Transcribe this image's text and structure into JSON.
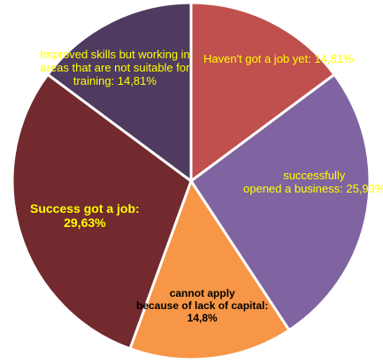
{
  "chart_data": {
    "type": "pie",
    "title": "",
    "slices": [
      {
        "label": "Haven't got a job yet",
        "value": 14.81,
        "display": "Haven't got a job yet: 14,81%",
        "color": "#c0504d",
        "label_color": "#ffff00",
        "bold": false
      },
      {
        "label": "successfully opened a business",
        "value": 25.93,
        "display": "successfully\nopened a business: 25,93%",
        "color": "#8064a2",
        "label_color": "#ffff00",
        "bold": false
      },
      {
        "label": "cannot apply because of lack of capital",
        "value": 14.8,
        "display": "cannot apply\nbecause of lack of capital:\n14,8%",
        "color": "#f79646",
        "label_color": "#000000",
        "bold": true
      },
      {
        "label": "Success got a job",
        "value": 29.63,
        "display": "Success got a job:\n29,63%",
        "color": "#722a2e",
        "label_color": "#ffff00",
        "bold": true
      },
      {
        "label": "Improved skills but working in areas that are not suitable for training",
        "value": 14.81,
        "display": "Improved skills but working in\nareas that are not suitable for\ntraining: 14,81%",
        "color": "#4f3b60",
        "label_color": "#ffff00",
        "bold": false
      }
    ],
    "start_angle_deg": 0,
    "direction": "clockwise",
    "legend": "none"
  }
}
